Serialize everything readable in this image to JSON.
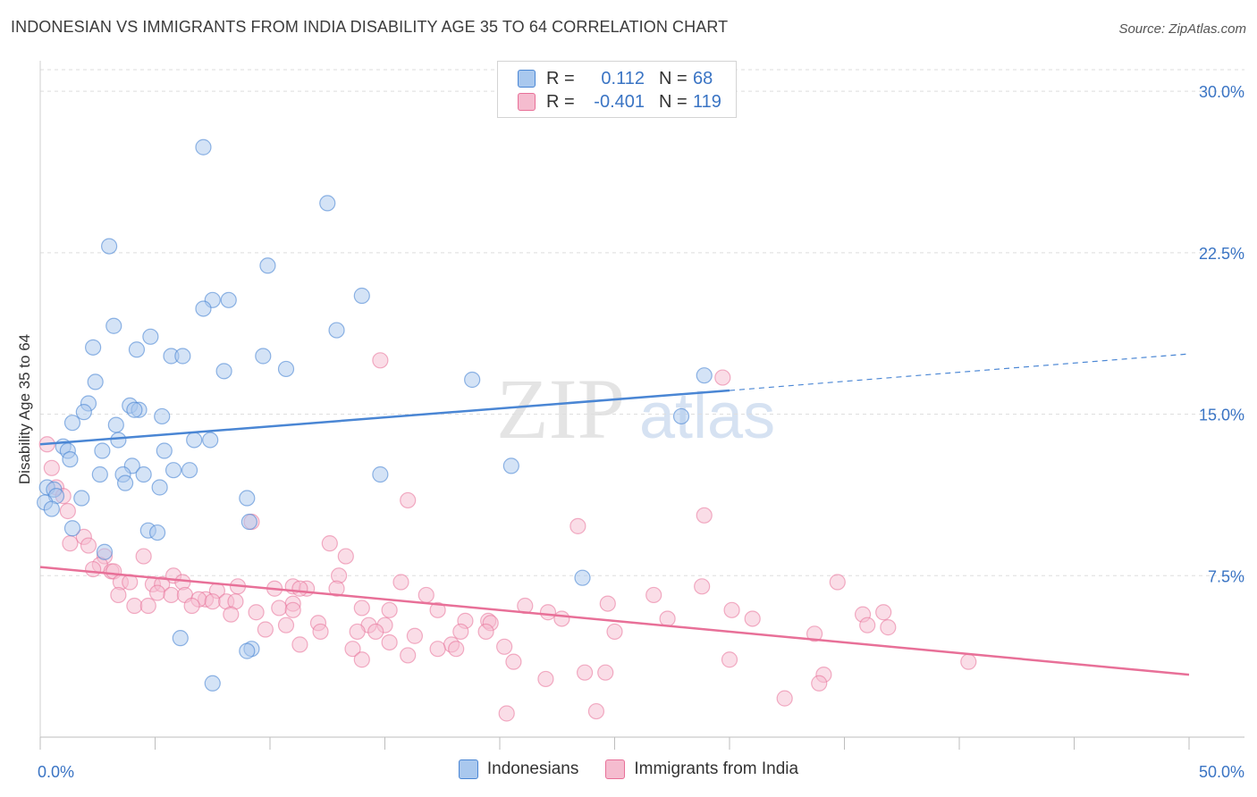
{
  "title": "INDONESIAN VS IMMIGRANTS FROM INDIA DISABILITY AGE 35 TO 64 CORRELATION CHART",
  "source": "Source: ZipAtlas.com",
  "watermark": {
    "zip": "ZIP",
    "atlas": "atlas"
  },
  "legend_box": {
    "rows": [
      {
        "r_label": "R =",
        "r_value": "0.112",
        "n_label": "N =",
        "n_value": "68"
      },
      {
        "r_label": "R =",
        "r_value": "-0.401",
        "n_label": "N =",
        "n_value": "119"
      }
    ]
  },
  "chart_data": {
    "type": "scatter",
    "title": "INDONESIAN VS IMMIGRANTS FROM INDIA DISABILITY AGE 35 TO 64 CORRELATION CHART",
    "xlabel": "",
    "ylabel": "Disability Age 35 to 64",
    "xlim": [
      0,
      50
    ],
    "ylim": [
      0,
      31
    ],
    "x_ticks": [
      0,
      5,
      10,
      15,
      20,
      25,
      30,
      35,
      40,
      45,
      50
    ],
    "x_tick_labels": {
      "0": "0.0%",
      "50": "50.0%"
    },
    "y_ticks": [
      7.5,
      15,
      22.5,
      30
    ],
    "y_tick_labels": [
      "7.5%",
      "15.0%",
      "22.5%",
      "30.0%"
    ],
    "grid": "horizontal dashed",
    "legend_position": "bottom-center",
    "colors": {
      "indonesians": "#4a86d4",
      "indonesians_fill": "#a9c8ee",
      "india": "#e87098",
      "india_fill": "#f5bccf"
    },
    "series": [
      {
        "name": "Indonesians",
        "trend": {
          "x0": 0,
          "y0": 13.6,
          "x1": 30,
          "y1": 16.1,
          "dash_to_x": 50,
          "dash_to_y": 17.8
        },
        "points": [
          [
            7.1,
            27.4
          ],
          [
            12.5,
            24.8
          ],
          [
            3.0,
            22.8
          ],
          [
            9.9,
            21.9
          ],
          [
            14.0,
            20.5
          ],
          [
            8.2,
            20.3
          ],
          [
            7.5,
            20.3
          ],
          [
            7.1,
            19.9
          ],
          [
            3.2,
            19.1
          ],
          [
            12.9,
            18.9
          ],
          [
            4.8,
            18.6
          ],
          [
            2.3,
            18.1
          ],
          [
            4.2,
            18.0
          ],
          [
            5.7,
            17.7
          ],
          [
            6.2,
            17.7
          ],
          [
            9.7,
            17.7
          ],
          [
            8.0,
            17.0
          ],
          [
            10.7,
            17.1
          ],
          [
            2.4,
            16.5
          ],
          [
            18.8,
            16.6
          ],
          [
            28.9,
            16.8
          ],
          [
            2.1,
            15.5
          ],
          [
            1.9,
            15.1
          ],
          [
            3.9,
            15.4
          ],
          [
            4.3,
            15.2
          ],
          [
            4.1,
            15.2
          ],
          [
            5.3,
            14.9
          ],
          [
            1.4,
            14.6
          ],
          [
            3.3,
            14.5
          ],
          [
            27.9,
            14.9
          ],
          [
            6.7,
            13.8
          ],
          [
            7.4,
            13.8
          ],
          [
            3.4,
            13.8
          ],
          [
            1.0,
            13.5
          ],
          [
            2.7,
            13.3
          ],
          [
            1.2,
            13.3
          ],
          [
            5.4,
            13.3
          ],
          [
            1.3,
            12.9
          ],
          [
            20.5,
            12.6
          ],
          [
            4.0,
            12.6
          ],
          [
            5.8,
            12.4
          ],
          [
            6.5,
            12.4
          ],
          [
            2.6,
            12.2
          ],
          [
            3.6,
            12.2
          ],
          [
            4.5,
            12.2
          ],
          [
            14.8,
            12.2
          ],
          [
            3.7,
            11.8
          ],
          [
            5.2,
            11.6
          ],
          [
            0.3,
            11.6
          ],
          [
            0.6,
            11.5
          ],
          [
            0.7,
            11.2
          ],
          [
            1.8,
            11.1
          ],
          [
            9.0,
            11.1
          ],
          [
            0.2,
            10.9
          ],
          [
            0.5,
            10.6
          ],
          [
            9.1,
            10.0
          ],
          [
            1.4,
            9.7
          ],
          [
            4.7,
            9.6
          ],
          [
            5.1,
            9.5
          ],
          [
            2.8,
            8.6
          ],
          [
            23.6,
            7.4
          ],
          [
            6.1,
            4.6
          ],
          [
            9.2,
            4.1
          ],
          [
            9.0,
            4.0
          ],
          [
            7.5,
            2.5
          ]
        ]
      },
      {
        "name": "Immigrants from India",
        "trend": {
          "x0": 0,
          "y0": 7.9,
          "x1": 50,
          "y1": 2.9
        },
        "points": [
          [
            14.8,
            17.5
          ],
          [
            29.7,
            16.7
          ],
          [
            0.3,
            13.6
          ],
          [
            0.5,
            12.5
          ],
          [
            0.7,
            11.6
          ],
          [
            1.0,
            11.2
          ],
          [
            1.2,
            10.5
          ],
          [
            16.0,
            11.0
          ],
          [
            28.9,
            10.3
          ],
          [
            9.2,
            10.0
          ],
          [
            23.4,
            9.8
          ],
          [
            1.9,
            9.3
          ],
          [
            1.3,
            9.0
          ],
          [
            12.6,
            9.0
          ],
          [
            2.1,
            8.9
          ],
          [
            2.8,
            8.4
          ],
          [
            4.5,
            8.4
          ],
          [
            13.3,
            8.4
          ],
          [
            2.6,
            8.0
          ],
          [
            3.1,
            7.7
          ],
          [
            2.3,
            7.8
          ],
          [
            3.2,
            7.7
          ],
          [
            5.8,
            7.5
          ],
          [
            13.0,
            7.5
          ],
          [
            3.5,
            7.2
          ],
          [
            3.9,
            7.2
          ],
          [
            6.2,
            7.2
          ],
          [
            15.7,
            7.2
          ],
          [
            34.7,
            7.2
          ],
          [
            4.9,
            7.1
          ],
          [
            5.3,
            7.1
          ],
          [
            8.6,
            7.0
          ],
          [
            11.0,
            7.0
          ],
          [
            11.6,
            6.9
          ],
          [
            12.9,
            6.9
          ],
          [
            28.8,
            7.0
          ],
          [
            7.7,
            6.8
          ],
          [
            10.2,
            6.9
          ],
          [
            11.3,
            6.9
          ],
          [
            5.1,
            6.7
          ],
          [
            5.7,
            6.6
          ],
          [
            6.3,
            6.6
          ],
          [
            3.4,
            6.6
          ],
          [
            16.8,
            6.6
          ],
          [
            26.7,
            6.6
          ],
          [
            7.2,
            6.4
          ],
          [
            6.9,
            6.4
          ],
          [
            7.5,
            6.3
          ],
          [
            8.1,
            6.3
          ],
          [
            8.5,
            6.3
          ],
          [
            11.0,
            6.2
          ],
          [
            4.1,
            6.1
          ],
          [
            4.7,
            6.1
          ],
          [
            6.6,
            6.1
          ],
          [
            21.1,
            6.1
          ],
          [
            24.7,
            6.2
          ],
          [
            14.0,
            6.0
          ],
          [
            17.3,
            5.9
          ],
          [
            10.4,
            6.0
          ],
          [
            11.0,
            5.9
          ],
          [
            15.2,
            5.9
          ],
          [
            22.1,
            5.8
          ],
          [
            30.1,
            5.9
          ],
          [
            35.8,
            5.7
          ],
          [
            36.7,
            5.8
          ],
          [
            8.3,
            5.7
          ],
          [
            9.4,
            5.8
          ],
          [
            22.7,
            5.5
          ],
          [
            27.3,
            5.5
          ],
          [
            31.0,
            5.5
          ],
          [
            12.1,
            5.3
          ],
          [
            18.5,
            5.4
          ],
          [
            19.5,
            5.4
          ],
          [
            19.6,
            5.3
          ],
          [
            36.0,
            5.2
          ],
          [
            36.9,
            5.1
          ],
          [
            10.7,
            5.2
          ],
          [
            14.3,
            5.2
          ],
          [
            15.0,
            5.2
          ],
          [
            9.8,
            5.0
          ],
          [
            12.2,
            4.9
          ],
          [
            13.8,
            4.9
          ],
          [
            14.6,
            4.9
          ],
          [
            18.3,
            4.9
          ],
          [
            19.4,
            4.9
          ],
          [
            25.0,
            4.9
          ],
          [
            33.7,
            4.8
          ],
          [
            11.3,
            4.3
          ],
          [
            16.3,
            4.7
          ],
          [
            17.9,
            4.3
          ],
          [
            15.2,
            4.4
          ],
          [
            13.6,
            4.1
          ],
          [
            18.1,
            4.1
          ],
          [
            20.2,
            4.2
          ],
          [
            16.0,
            3.8
          ],
          [
            14.0,
            3.6
          ],
          [
            17.3,
            4.1
          ],
          [
            20.6,
            3.5
          ],
          [
            30.0,
            3.6
          ],
          [
            40.4,
            3.5
          ],
          [
            22.0,
            2.7
          ],
          [
            23.7,
            3.0
          ],
          [
            24.6,
            3.0
          ],
          [
            34.1,
            2.9
          ],
          [
            33.9,
            2.5
          ],
          [
            24.2,
            1.2
          ],
          [
            20.3,
            1.1
          ],
          [
            32.4,
            1.8
          ]
        ]
      }
    ]
  },
  "bottom_legend": [
    {
      "label": "Indonesians"
    },
    {
      "label": "Immigrants from India"
    }
  ]
}
